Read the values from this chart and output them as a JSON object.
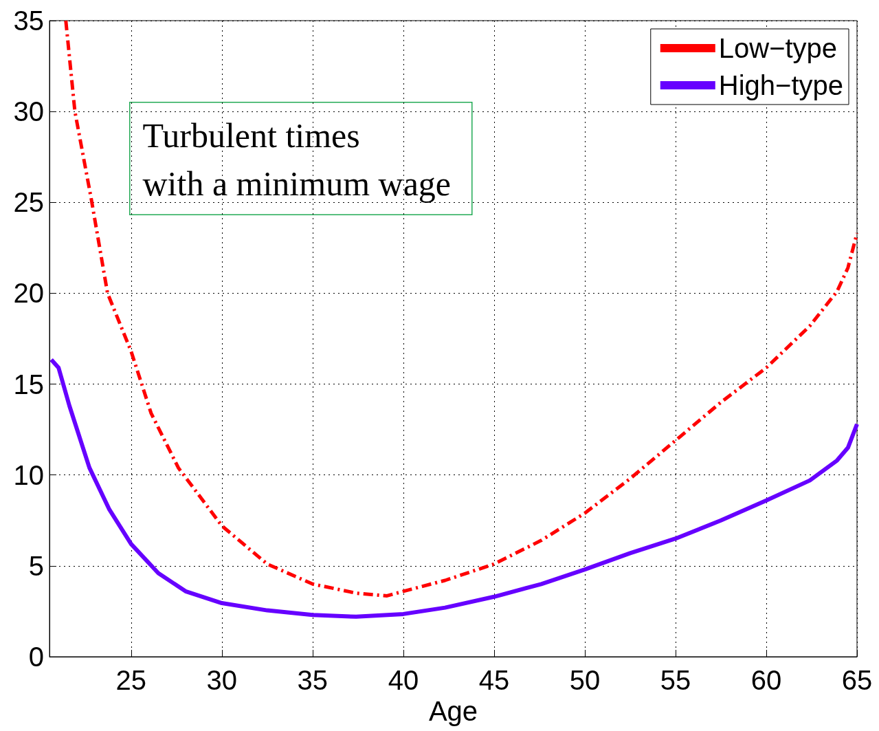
{
  "chart_data": {
    "type": "line",
    "xlabel": "Age",
    "annotations": [
      "Turbulent times\nwith a minimum wage"
    ],
    "xlim": [
      20.5,
      65
    ],
    "xticks": [
      25,
      30,
      35,
      40,
      45,
      50,
      55,
      60,
      65
    ],
    "ylim": [
      0,
      35
    ],
    "yticks": [
      0,
      5,
      10,
      15,
      20,
      25,
      30,
      35
    ],
    "grid": true,
    "legend": "top right",
    "marker": "none",
    "series": [
      {
        "name": "Low−type",
        "color": "#ff0000",
        "line_style": "dashed",
        "x": [
          21.4,
          21.9,
          22.8,
          23.7,
          25,
          26.1,
          27.6,
          30,
          32.5,
          35,
          37.4,
          39.1,
          40,
          42.3,
          45,
          47.6,
          50,
          52.5,
          55,
          57.5,
          60,
          62.4,
          63.9,
          64.5,
          65
        ],
        "values": [
          35,
          30,
          25.2,
          20,
          16.8,
          13.4,
          10.4,
          7.2,
          5.1,
          4.0,
          3.5,
          3.35,
          3.6,
          4.2,
          5.1,
          6.4,
          7.9,
          9.8,
          11.9,
          14.0,
          15.9,
          18.2,
          20.1,
          21.4,
          23.3
        ]
      },
      {
        "name": "High−type",
        "color": "#6600ff",
        "line_style": "solid",
        "x": [
          20.6,
          21,
          21.6,
          22.7,
          23.8,
          25,
          26.5,
          28,
          30,
          32.5,
          35,
          37.4,
          40,
          42.3,
          45,
          47.6,
          50,
          52.5,
          55,
          57.5,
          60,
          62.4,
          63.9,
          64.5,
          65
        ],
        "values": [
          16.35,
          15.9,
          13.8,
          10.4,
          8.1,
          6.2,
          4.6,
          3.6,
          2.95,
          2.55,
          2.3,
          2.2,
          2.35,
          2.7,
          3.3,
          4.0,
          4.8,
          5.7,
          6.5,
          7.5,
          8.6,
          9.7,
          10.8,
          11.5,
          12.8
        ]
      }
    ]
  }
}
